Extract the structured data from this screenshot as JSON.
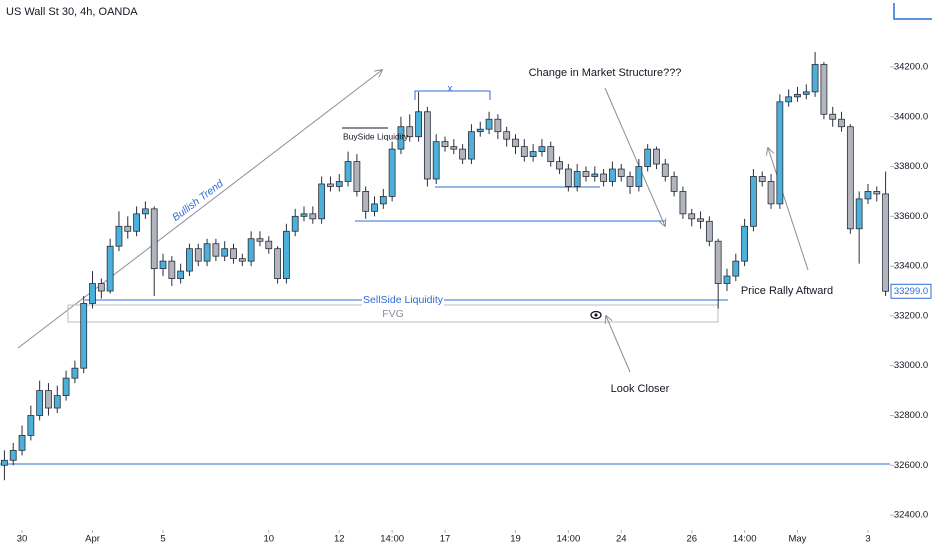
{
  "chart_data": {
    "type": "candlestick",
    "title": "US Wall St 30, 4h, OANDA",
    "up_color": "#4cb0da",
    "down_color": "#b2b5be",
    "wick_color": "#2a2e39",
    "grid": false,
    "xlim": [
      -0.5,
      100.5
    ],
    "ylim": [
      32340,
      34469
    ],
    "yticks": [
      {
        "value": 32400,
        "label": "32400.0"
      },
      {
        "value": 32600,
        "label": "32600.0"
      },
      {
        "value": 32800,
        "label": "32800.0"
      },
      {
        "value": 33000,
        "label": "33000.0"
      },
      {
        "value": 33200,
        "label": "33200.0"
      },
      {
        "value": 33400,
        "label": "33400.0"
      },
      {
        "value": 33600,
        "label": "33600.0"
      },
      {
        "value": 33800,
        "label": "33800.0"
      },
      {
        "value": 34000,
        "label": "34000.0"
      },
      {
        "value": 34200,
        "label": "34200.0"
      }
    ],
    "xticks": [
      {
        "value": 2,
        "label": "30"
      },
      {
        "value": 10,
        "label": "Apr"
      },
      {
        "value": 18,
        "label": "5"
      },
      {
        "value": 30,
        "label": "10"
      },
      {
        "value": 38,
        "label": "12"
      },
      {
        "value": 44,
        "label": "14:00"
      },
      {
        "value": 50,
        "label": "17"
      },
      {
        "value": 58,
        "label": "19"
      },
      {
        "value": 64,
        "label": "14:00"
      },
      {
        "value": 70,
        "label": "24"
      },
      {
        "value": 78,
        "label": "26"
      },
      {
        "value": 84,
        "label": "14:00"
      },
      {
        "value": 90,
        "label": "May"
      },
      {
        "value": 98,
        "label": "3"
      }
    ],
    "last_price": {
      "value": 33299,
      "label": "33299.0"
    },
    "annotations": {
      "bullish_trend": "Bullish Trend",
      "buyside": "BuySide Liquidity",
      "x_marker": "x",
      "structure": "Change in Market Structure???",
      "sellside": "SellSide Liquidity",
      "fvg": "FVG",
      "look_closer": "Look Closer",
      "rally": "Price Rally Aftward"
    },
    "open": [
      32600,
      32620,
      32660,
      32720,
      32800,
      32900,
      32830,
      32880,
      32950,
      32990,
      33250,
      33330,
      33300,
      33480,
      33560,
      33540,
      33610,
      33630,
      33390,
      33420,
      33350,
      33380,
      33470,
      33420,
      33490,
      33440,
      33470,
      33430,
      33420,
      33510,
      33500,
      33470,
      33350,
      33540,
      33600,
      33610,
      33590,
      33730,
      33720,
      33740,
      33820,
      33700,
      33620,
      33650,
      33680,
      33870,
      33960,
      33920,
      34020,
      33750,
      33900,
      33880,
      33870,
      33830,
      33940,
      33950,
      33990,
      33940,
      33910,
      33880,
      33840,
      33860,
      33880,
      33820,
      33790,
      33720,
      33780,
      33760,
      33770,
      33740,
      33790,
      33760,
      33720,
      33800,
      33870,
      33810,
      33760,
      33700,
      33610,
      33590,
      33580,
      33500,
      33330,
      33360,
      33420,
      33560,
      33760,
      33740,
      33650,
      34060,
      34080,
      34090,
      34100,
      34210,
      34010,
      33990,
      33960,
      33550,
      33670,
      33700,
      33690
    ],
    "high": [
      32660,
      32690,
      32760,
      32840,
      32940,
      32930,
      32920,
      32980,
      33020,
      33280,
      33380,
      33350,
      33510,
      33620,
      33600,
      33640,
      33660,
      33640,
      33450,
      33440,
      33410,
      33490,
      33490,
      33510,
      33510,
      33500,
      33490,
      33450,
      33540,
      33540,
      33520,
      33480,
      33570,
      33630,
      33640,
      33640,
      33760,
      33760,
      33770,
      33860,
      33850,
      33720,
      33680,
      33710,
      33900,
      34000,
      34010,
      34100,
      34040,
      33930,
      33920,
      33910,
      33890,
      33970,
      33980,
      34020,
      34010,
      33960,
      33930,
      33910,
      33890,
      33910,
      33900,
      33840,
      33810,
      33810,
      33800,
      33800,
      33790,
      33820,
      33810,
      33780,
      33830,
      33890,
      33880,
      33830,
      33780,
      33720,
      33630,
      33620,
      33600,
      33510,
      33390,
      33450,
      33590,
      33790,
      33780,
      33770,
      34090,
      34110,
      34120,
      34130,
      34260,
      34220,
      34040,
      34020,
      33970,
      33700,
      33730,
      33720,
      33780
    ],
    "low": [
      32540,
      32600,
      32640,
      32700,
      32780,
      32800,
      32810,
      32860,
      32930,
      32970,
      33230,
      33270,
      33290,
      33460,
      33510,
      33520,
      33590,
      33280,
      33360,
      33320,
      33330,
      33360,
      33400,
      33400,
      33420,
      33420,
      33410,
      33400,
      33400,
      33480,
      33450,
      33330,
      33330,
      33520,
      33580,
      33570,
      33570,
      33700,
      33700,
      33720,
      33680,
      33590,
      33600,
      33630,
      33660,
      33850,
      33900,
      33900,
      33720,
      33730,
      33860,
      33850,
      33810,
      33810,
      33920,
      33930,
      33910,
      33880,
      33850,
      33820,
      33820,
      33840,
      33800,
      33770,
      33700,
      33700,
      33740,
      33740,
      33720,
      33720,
      33740,
      33690,
      33700,
      33780,
      33790,
      33740,
      33680,
      33590,
      33560,
      33550,
      33480,
      33230,
      33300,
      33340,
      33400,
      33540,
      33720,
      33630,
      33630,
      34040,
      34060,
      34070,
      34080,
      33990,
      33960,
      33940,
      33530,
      33410,
      33650,
      33660,
      33280
    ],
    "close": [
      32620,
      32660,
      32720,
      32800,
      32900,
      32830,
      32880,
      32950,
      32990,
      33250,
      33330,
      33300,
      33480,
      33560,
      33540,
      33610,
      33630,
      33390,
      33420,
      33350,
      33380,
      33470,
      33420,
      33490,
      33440,
      33470,
      33430,
      33420,
      33510,
      33500,
      33470,
      33350,
      33540,
      33600,
      33610,
      33590,
      33730,
      33720,
      33740,
      33820,
      33700,
      33620,
      33650,
      33680,
      33870,
      33960,
      33920,
      34020,
      33750,
      33900,
      33880,
      33870,
      33830,
      33940,
      33950,
      33990,
      33940,
      33910,
      33880,
      33840,
      33860,
      33880,
      33820,
      33790,
      33720,
      33780,
      33760,
      33770,
      33740,
      33790,
      33760,
      33720,
      33800,
      33870,
      33810,
      33760,
      33700,
      33610,
      33590,
      33580,
      33500,
      33330,
      33360,
      33420,
      33560,
      33760,
      33740,
      33650,
      34060,
      34080,
      34090,
      34100,
      34210,
      34010,
      33990,
      33960,
      33550,
      33670,
      33700,
      33690,
      33299
    ]
  }
}
